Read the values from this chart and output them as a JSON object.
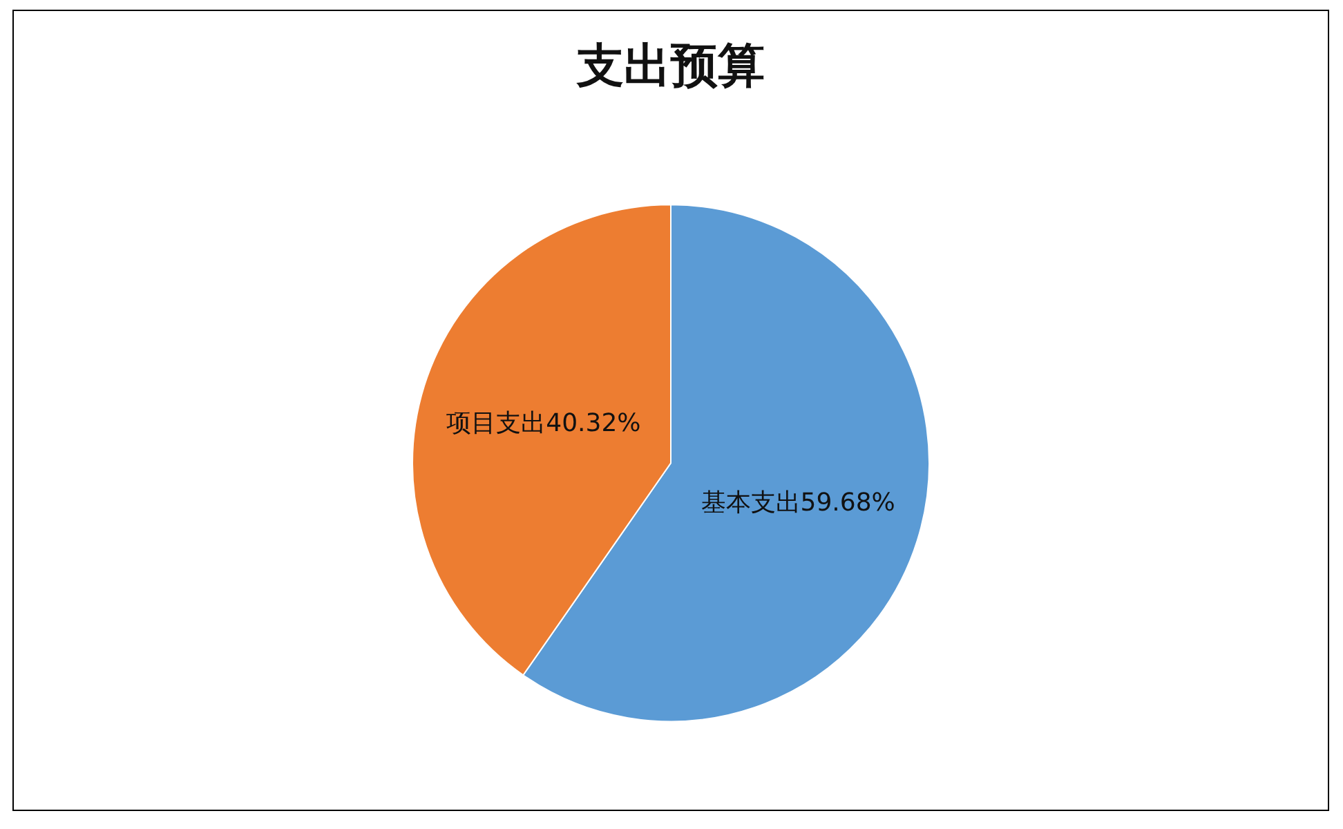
{
  "chart_data": {
    "type": "pie",
    "title": "支出预算",
    "categories": [
      "基本支出",
      "项目支出"
    ],
    "values": [
      59.68,
      40.32
    ],
    "colors": [
      "#5b9bd5",
      "#ed7d31"
    ],
    "value_labels": [
      "59.68%",
      "40.32%"
    ]
  }
}
